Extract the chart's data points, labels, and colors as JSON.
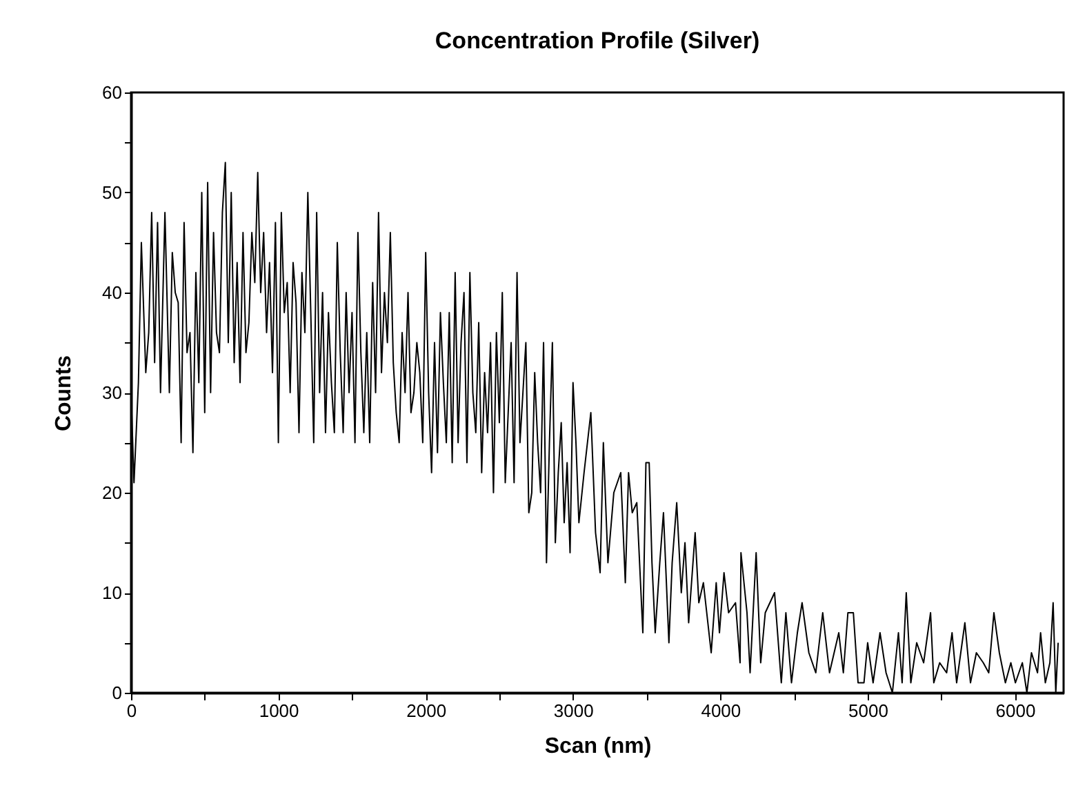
{
  "chart_data": {
    "type": "line",
    "title": "Concentration Profile (Silver)",
    "xlabel": "Scan (nm)",
    "ylabel": "Counts",
    "series": [
      {
        "color": "#000000",
        "x": [
          0,
          20,
          50,
          70,
          100,
          120,
          140,
          160,
          180,
          200,
          230,
          260,
          280,
          300,
          320,
          340,
          360,
          380,
          400,
          420,
          440,
          460,
          480,
          500,
          520,
          540,
          560,
          580,
          600,
          620,
          640,
          660,
          680,
          700,
          720,
          740,
          760,
          780,
          800,
          820,
          840,
          860,
          880,
          900,
          920,
          940,
          960,
          980,
          1000,
          1020,
          1040,
          1060,
          1080,
          1100,
          1120,
          1140,
          1160,
          1180,
          1200,
          1220,
          1240,
          1260,
          1280,
          1300,
          1320,
          1340,
          1360,
          1380,
          1400,
          1420,
          1440,
          1460,
          1480,
          1500,
          1520,
          1540,
          1560,
          1580,
          1600,
          1620,
          1640,
          1660,
          1680,
          1700,
          1720,
          1740,
          1760,
          1780,
          1800,
          1820,
          1840,
          1860,
          1880,
          1900,
          1920,
          1940,
          1960,
          1980,
          2000,
          2020,
          2040,
          2060,
          2080,
          2100,
          2120,
          2140,
          2160,
          2180,
          2200,
          2220,
          2240,
          2260,
          2280,
          2300,
          2320,
          2340,
          2360,
          2380,
          2400,
          2420,
          2440,
          2460,
          2480,
          2500,
          2520,
          2540,
          2560,
          2580,
          2600,
          2620,
          2640,
          2660,
          2680,
          2700,
          2720,
          2740,
          2760,
          2780,
          2800,
          2820,
          2840,
          2860,
          2880,
          2900,
          2920,
          2940,
          2960,
          2980,
          3000,
          3020,
          3040,
          3075,
          3121,
          3153,
          3184,
          3206,
          3237,
          3277,
          3324,
          3355,
          3377,
          3402,
          3433,
          3474,
          3495,
          3517,
          3536,
          3558,
          3589,
          3614,
          3651,
          3673,
          3704,
          3735,
          3760,
          3785,
          3829,
          3854,
          3885,
          3938,
          3972,
          3994,
          4025,
          4056,
          4103,
          4134,
          4140,
          4181,
          4202,
          4243,
          4274,
          4305,
          4368,
          4414,
          4445,
          4483,
          4523,
          4555,
          4601,
          4648,
          4695,
          4741,
          4804,
          4835,
          4866,
          4903,
          4935,
          4975,
          5000,
          5037,
          5084,
          5125,
          5168,
          5209,
          5234,
          5262,
          5293,
          5333,
          5380,
          5427,
          5449,
          5489,
          5536,
          5573,
          5604,
          5660,
          5698,
          5738,
          5785,
          5822,
          5857,
          5894,
          5935,
          5972,
          6003,
          6050,
          6081,
          6112,
          6153,
          6174,
          6206,
          6237,
          6259,
          6277,
          6293
        ],
        "values": [
          30,
          21,
          31,
          45,
          32,
          36,
          48,
          33,
          47,
          30,
          48,
          30,
          44,
          40,
          39,
          25,
          47,
          34,
          36,
          24,
          42,
          31,
          50,
          28,
          51,
          30,
          46,
          36,
          34,
          48,
          53,
          35,
          50,
          33,
          43,
          31,
          46,
          34,
          37,
          46,
          41,
          52,
          40,
          46,
          36,
          43,
          32,
          47,
          25,
          48,
          38,
          41,
          30,
          43,
          39,
          26,
          42,
          36,
          50,
          38,
          25,
          48,
          30,
          40,
          26,
          38,
          31,
          26,
          45,
          34,
          26,
          40,
          30,
          38,
          25,
          46,
          34,
          26,
          36,
          25,
          41,
          30,
          48,
          32,
          40,
          35,
          46,
          33,
          28,
          25,
          36,
          30,
          40,
          28,
          30,
          35,
          32,
          25,
          44,
          30,
          22,
          35,
          24,
          38,
          31,
          25,
          38,
          23,
          42,
          25,
          35,
          40,
          23,
          42,
          30,
          26,
          37,
          22,
          32,
          26,
          35,
          20,
          36,
          27,
          40,
          21,
          28,
          35,
          21,
          42,
          25,
          30,
          35,
          18,
          20,
          32,
          25,
          20,
          35,
          13,
          25,
          35,
          15,
          22,
          27,
          17,
          23,
          14,
          31,
          25,
          17,
          22,
          28,
          16,
          12,
          25,
          13,
          20,
          22,
          11,
          22,
          18,
          19,
          6,
          23,
          23,
          13,
          6,
          13,
          18,
          5,
          13,
          19,
          10,
          15,
          7,
          16,
          9,
          11,
          4,
          11,
          6,
          12,
          8,
          9,
          3,
          14,
          8,
          2,
          14,
          3,
          8,
          10,
          1,
          8,
          1,
          6,
          9,
          4,
          2,
          8,
          2,
          6,
          2,
          8,
          8,
          1,
          1,
          5,
          1,
          6,
          2,
          0,
          6,
          1,
          10,
          1,
          5,
          3,
          8,
          1,
          3,
          2,
          6,
          1,
          7,
          1,
          4,
          3,
          2,
          8,
          4,
          1,
          3,
          1,
          3,
          0,
          4,
          2,
          6,
          1,
          3,
          9,
          0,
          5
        ]
      }
    ],
    "xlim": [
      0,
      6330
    ],
    "xticks": [
      0,
      {
        "value": 500,
        "label": null
      },
      1000,
      {
        "value": 1500,
        "label": null
      },
      2000,
      {
        "value": 2500,
        "label": null
      },
      3000,
      {
        "value": 3500,
        "label": null
      },
      4000,
      {
        "value": 4500,
        "label": null
      },
      5000,
      {
        "value": 5500,
        "label": null
      },
      6000
    ],
    "ylim": [
      0,
      60
    ],
    "yticks": [
      0,
      {
        "value": 5,
        "label": null
      },
      10,
      {
        "value": 15,
        "label": null
      },
      20,
      {
        "value": 25,
        "label": null
      },
      30,
      {
        "value": 35,
        "label": null
      },
      40,
      {
        "value": 45,
        "label": null
      },
      50,
      {
        "value": 55,
        "label": null
      },
      60
    ],
    "grid": false,
    "marker": "none",
    "line_style": "solid"
  }
}
